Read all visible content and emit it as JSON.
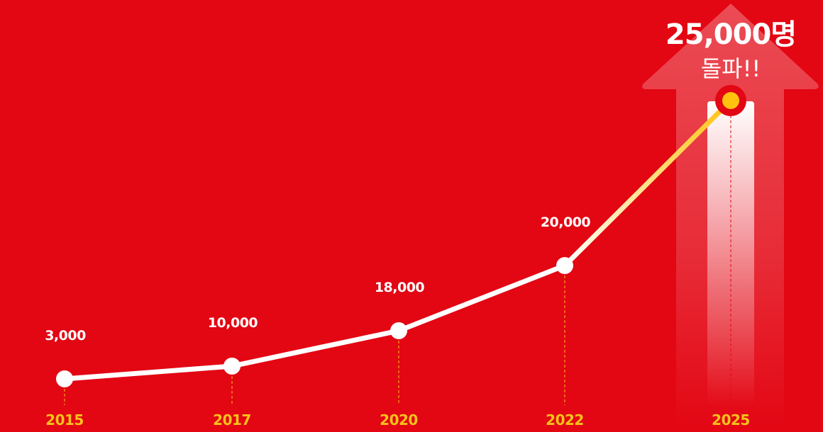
{
  "chart_data": {
    "type": "line",
    "categories": [
      "2015",
      "2017",
      "2020",
      "2022",
      "2025"
    ],
    "values": [
      3000,
      10000,
      18000,
      20000,
      25000
    ],
    "value_labels": [
      "3,000",
      "10,000",
      "18,000",
      "20,000",
      "25,000"
    ],
    "title": "",
    "xlabel": "",
    "ylabel": "",
    "grid": false,
    "highlight": {
      "headline": "25,000명",
      "subline": "돌파!!"
    }
  },
  "colors": {
    "background": "#e30613",
    "line": "#ffffff",
    "highlight_line": "#ffc20e",
    "year_label": "#f7c21a"
  }
}
